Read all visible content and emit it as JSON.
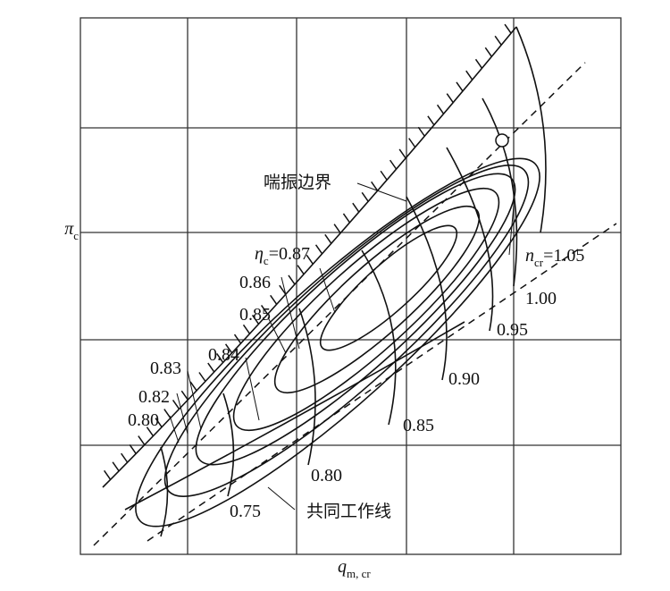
{
  "axes": {
    "y_label": {
      "symbol": "π",
      "subscript": "c"
    },
    "x_label": {
      "symbol": "q",
      "subscript": "m, cr"
    }
  },
  "annotations": {
    "surge_line": "喘振边界",
    "operating_line": "共同工作线"
  },
  "efficiency": {
    "symbol": "η",
    "subscript": "c",
    "first": "=0.87",
    "labels": [
      "0.86",
      "0.85",
      "0.84",
      "0.83",
      "0.82",
      "0.80"
    ]
  },
  "speed": {
    "symbol": "n",
    "subscript": "cr",
    "first": "=1.05",
    "labels": [
      "1.00",
      "0.95",
      "0.90",
      "0.85",
      "0.80",
      "0.75"
    ]
  }
}
